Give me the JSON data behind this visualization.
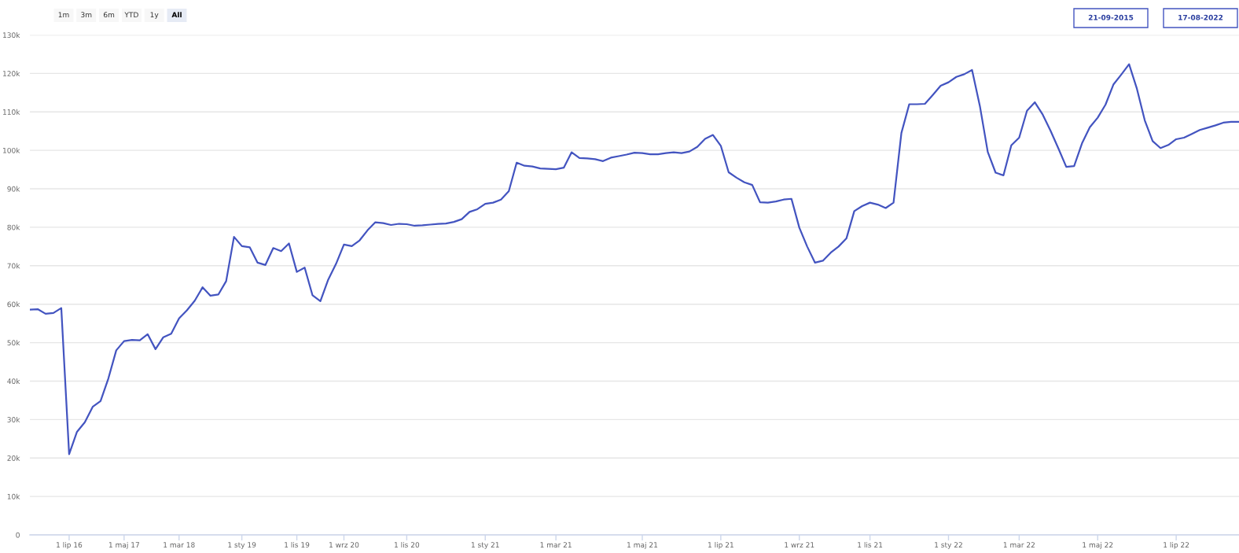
{
  "chart_data": {
    "type": "line",
    "categories": [
      null,
      null,
      null,
      null,
      null,
      "1 lip 16",
      null,
      null,
      null,
      null,
      null,
      null,
      "1 maj 17",
      null,
      null,
      null,
      null,
      null,
      null,
      "1 mar 18",
      null,
      null,
      null,
      null,
      null,
      null,
      null,
      "1 sty 19",
      null,
      null,
      null,
      null,
      null,
      null,
      "1 lis 19",
      null,
      null,
      null,
      null,
      null,
      "1 wrz 20",
      null,
      null,
      null,
      null,
      null,
      null,
      null,
      "1 lis 20",
      null,
      null,
      null,
      null,
      null,
      null,
      null,
      null,
      null,
      "1 sty 21",
      null,
      null,
      null,
      null,
      null,
      null,
      null,
      null,
      "1 mar 21",
      null,
      null,
      null,
      null,
      null,
      null,
      null,
      null,
      null,
      null,
      "1 maj 21",
      null,
      null,
      null,
      null,
      null,
      null,
      null,
      null,
      null,
      "1 lip 21",
      null,
      null,
      null,
      null,
      null,
      null,
      null,
      null,
      null,
      "1 wrz 21",
      null,
      null,
      null,
      null,
      null,
      null,
      null,
      null,
      "1 lis 21",
      null,
      null,
      null,
      null,
      null,
      null,
      null,
      null,
      null,
      "1 sty 22",
      null,
      null,
      null,
      null,
      null,
      null,
      null,
      null,
      "1 mar 22",
      null,
      null,
      null,
      null,
      null,
      null,
      null,
      null,
      null,
      "1 maj 22",
      null,
      null,
      null,
      null,
      null,
      null,
      null,
      null,
      null,
      "1 lip 22",
      null,
      null,
      null,
      null,
      null,
      null,
      null,
      null
    ],
    "series": [
      {
        "color": "#4354c0",
        "values": [
          58600,
          58700,
          57500,
          57700,
          59000,
          21000,
          26800,
          29300,
          33300,
          34800,
          40700,
          48000,
          50400,
          50700,
          50600,
          52200,
          48300,
          51400,
          52300,
          56300,
          58400,
          60900,
          64400,
          62200,
          62500,
          66000,
          77500,
          75100,
          74800,
          70800,
          70200,
          74600,
          73800,
          75800,
          68400,
          69500,
          62300,
          60800,
          66400,
          70500,
          75500,
          75100,
          76600,
          79200,
          81300,
          81100,
          80600,
          80900,
          80800,
          80400,
          80500,
          80700,
          80900,
          81000,
          81400,
          82100,
          84000,
          84700,
          86100,
          86400,
          87200,
          89400,
          96800,
          96000,
          95800,
          95300,
          95200,
          95100,
          95500,
          99500,
          98000,
          97900,
          97700,
          97200,
          98100,
          98500,
          98900,
          99400,
          99300,
          99000,
          99000,
          99300,
          99500,
          99300,
          99700,
          100900,
          103000,
          104000,
          101200,
          94300,
          92900,
          91700,
          91000,
          86500,
          86400,
          86700,
          87200,
          87400,
          79900,
          75000,
          70800,
          71300,
          73400,
          75000,
          77100,
          84200,
          85500,
          86400,
          85900,
          85000,
          86400,
          104500,
          112000,
          112000,
          112100,
          114400,
          116800,
          117700,
          119100,
          119800,
          120900,
          111500,
          99600,
          94200,
          93500,
          101300,
          103300,
          110300,
          112500,
          109300,
          105100,
          100500,
          95700,
          95900,
          101800,
          106000,
          108500,
          111900,
          117100,
          119700,
          122400,
          116000,
          107800,
          102400,
          100600,
          101400,
          102900,
          103300,
          104300,
          105300,
          105900,
          106500,
          107200,
          107400,
          107400
        ]
      }
    ],
    "ylim": [
      0,
      130000
    ],
    "yticks": [
      0,
      {
        "value": 10000,
        "label": "10k"
      },
      {
        "value": 20000,
        "label": "20k"
      },
      {
        "value": 30000,
        "label": "30k"
      },
      {
        "value": 40000,
        "label": "40k"
      },
      {
        "value": 50000,
        "label": "50k"
      },
      {
        "value": 60000,
        "label": "60k"
      },
      {
        "value": 70000,
        "label": "70k"
      },
      {
        "value": 80000,
        "label": "80k"
      },
      {
        "value": 90000,
        "label": "90k"
      },
      {
        "value": 100000,
        "label": "100k"
      },
      {
        "value": 110000,
        "label": "110k"
      },
      {
        "value": 120000,
        "label": "120k"
      },
      {
        "value": 130000,
        "label": "130k"
      }
    ],
    "grid": "y",
    "annotations": [
      "1m",
      "3m",
      "6m",
      "YTD",
      "1y",
      "All",
      "21-09-2015",
      "17-08-2022"
    ]
  }
}
